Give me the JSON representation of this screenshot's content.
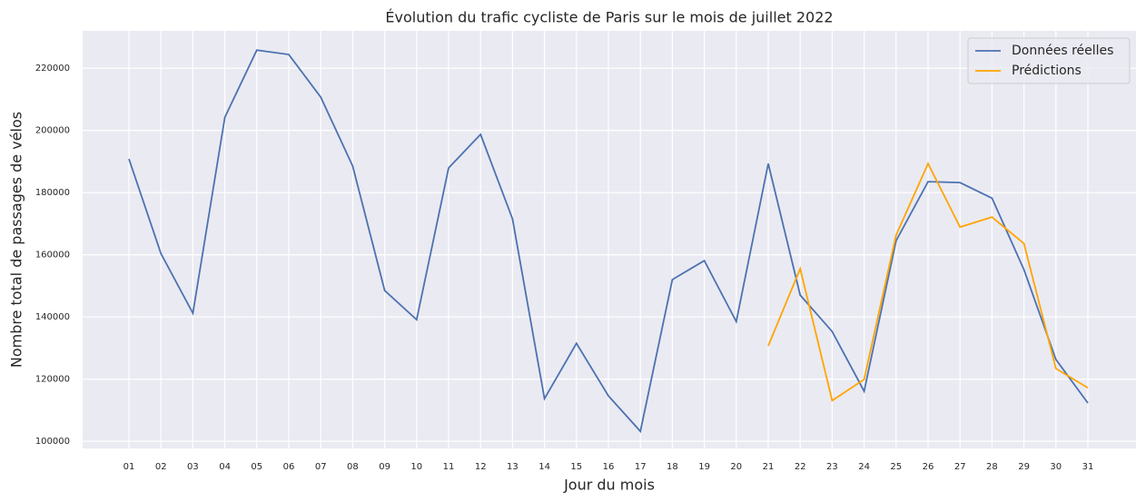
{
  "chart_data": {
    "type": "line",
    "title": "Évolution du trafic cycliste de Paris sur le mois de juillet 2022",
    "xlabel": "Jour du mois",
    "ylabel": "Nombre total de passages de vélos",
    "categories": [
      "01",
      "02",
      "03",
      "04",
      "05",
      "06",
      "07",
      "08",
      "09",
      "10",
      "11",
      "12",
      "13",
      "14",
      "15",
      "16",
      "17",
      "18",
      "19",
      "20",
      "21",
      "22",
      "23",
      "24",
      "25",
      "26",
      "27",
      "28",
      "29",
      "30",
      "31"
    ],
    "series": [
      {
        "name": "Données réelles",
        "color": "#4c72b0",
        "values": [
          190800,
          160400,
          141200,
          204200,
          225800,
          224400,
          210700,
          188500,
          148500,
          139100,
          187900,
          198700,
          171500,
          113700,
          131500,
          114600,
          103200,
          152000,
          158100,
          138500,
          189300,
          147000,
          135300,
          116100,
          164500,
          183500,
          183200,
          178200,
          155200,
          126300,
          112300
        ]
      },
      {
        "name": "Prédictions",
        "color": "#ffa500",
        "values": [
          null,
          null,
          null,
          null,
          null,
          null,
          null,
          null,
          null,
          null,
          null,
          null,
          null,
          null,
          null,
          null,
          null,
          null,
          null,
          null,
          130700,
          155500,
          113100,
          119900,
          166300,
          189300,
          168900,
          172100,
          163600,
          123400,
          117200
        ]
      }
    ],
    "ylim": [
      97700,
      232000
    ],
    "yticks": [
      100000,
      120000,
      140000,
      160000,
      180000,
      200000,
      220000
    ],
    "grid": true,
    "legend": "upper right"
  }
}
